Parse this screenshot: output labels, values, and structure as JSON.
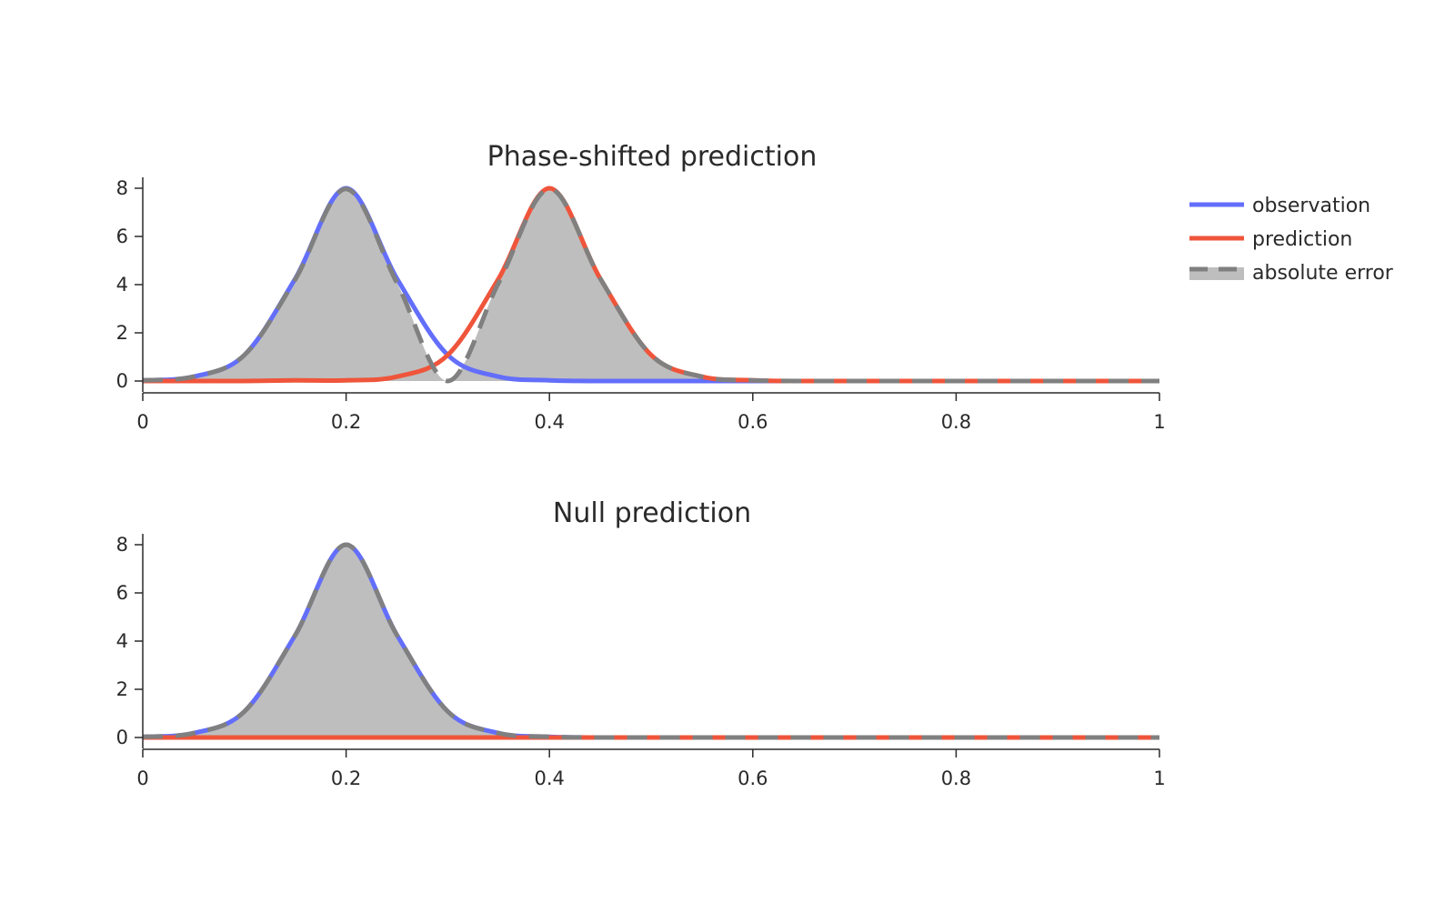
{
  "chart_data": [
    {
      "type": "line",
      "title": "Phase-shifted prediction",
      "xlabel": "",
      "ylabel": "",
      "xlim": [
        0,
        1
      ],
      "ylim": [
        0,
        8
      ],
      "x_ticks": [
        "0",
        "0.2",
        "0.4",
        "0.6",
        "0.8",
        "1"
      ],
      "y_ticks": [
        "0",
        "2",
        "4",
        "6",
        "8"
      ],
      "x": [
        0.0,
        0.05,
        0.1,
        0.15,
        0.2,
        0.25,
        0.3,
        0.35,
        0.4,
        0.45,
        0.5,
        0.55,
        0.6,
        0.65,
        0.7,
        0.75,
        0.8,
        0.85,
        0.9,
        0.95,
        1.0
      ],
      "series": [
        {
          "name": "observation",
          "color": "#636efa",
          "values": [
            0.03,
            0.18,
            1.08,
            4.25,
            8.0,
            4.25,
            1.08,
            0.18,
            0.03,
            0.0,
            0.0,
            0.0,
            0.0,
            0.0,
            0.0,
            0.0,
            0.0,
            0.0,
            0.0,
            0.0,
            0.0
          ]
        },
        {
          "name": "prediction",
          "color": "#ef553b",
          "values": [
            0.0,
            0.0,
            0.0,
            0.03,
            0.03,
            0.18,
            1.08,
            4.25,
            8.0,
            4.25,
            1.08,
            0.18,
            0.03,
            0.0,
            0.0,
            0.0,
            0.0,
            0.0,
            0.0,
            0.0,
            0.0
          ]
        },
        {
          "name": "absolute error",
          "color": "#808080",
          "fill": "#bebebe",
          "values": [
            0.03,
            0.18,
            1.08,
            4.22,
            7.97,
            4.07,
            0.0,
            4.07,
            7.97,
            4.25,
            1.08,
            0.18,
            0.03,
            0.0,
            0.0,
            0.0,
            0.0,
            0.0,
            0.0,
            0.0,
            0.0
          ]
        }
      ]
    },
    {
      "type": "line",
      "title": "Null prediction",
      "xlabel": "",
      "ylabel": "",
      "xlim": [
        0,
        1
      ],
      "ylim": [
        0,
        8
      ],
      "x_ticks": [
        "0",
        "0.2",
        "0.4",
        "0.6",
        "0.8",
        "1"
      ],
      "y_ticks": [
        "0",
        "2",
        "4",
        "6",
        "8"
      ],
      "x": [
        0.0,
        0.05,
        0.1,
        0.15,
        0.2,
        0.25,
        0.3,
        0.35,
        0.4,
        0.45,
        0.5,
        0.55,
        0.6,
        0.65,
        0.7,
        0.75,
        0.8,
        0.85,
        0.9,
        0.95,
        1.0
      ],
      "series": [
        {
          "name": "observation",
          "color": "#636efa",
          "values": [
            0.03,
            0.18,
            1.08,
            4.25,
            8.0,
            4.25,
            1.08,
            0.18,
            0.03,
            0.0,
            0.0,
            0.0,
            0.0,
            0.0,
            0.0,
            0.0,
            0.0,
            0.0,
            0.0,
            0.0,
            0.0
          ]
        },
        {
          "name": "prediction",
          "color": "#ef553b",
          "values": [
            0.0,
            0.0,
            0.0,
            0.0,
            0.0,
            0.0,
            0.0,
            0.0,
            0.0,
            0.0,
            0.0,
            0.0,
            0.0,
            0.0,
            0.0,
            0.0,
            0.0,
            0.0,
            0.0,
            0.0,
            0.0
          ]
        },
        {
          "name": "absolute error",
          "color": "#808080",
          "fill": "#bebebe",
          "values": [
            0.03,
            0.18,
            1.08,
            4.25,
            8.0,
            4.25,
            1.08,
            0.18,
            0.03,
            0.0,
            0.0,
            0.0,
            0.0,
            0.0,
            0.0,
            0.0,
            0.0,
            0.0,
            0.0,
            0.0,
            0.0
          ]
        }
      ]
    }
  ],
  "legend": {
    "placement": "right",
    "items": [
      {
        "label": "observation",
        "color": "#636efa",
        "style": "solid"
      },
      {
        "label": "prediction",
        "color": "#ef553b",
        "style": "solid"
      },
      {
        "label": "absolute error",
        "color": "#808080",
        "fill": "#bebebe",
        "style": "dashed-fill"
      }
    ]
  }
}
